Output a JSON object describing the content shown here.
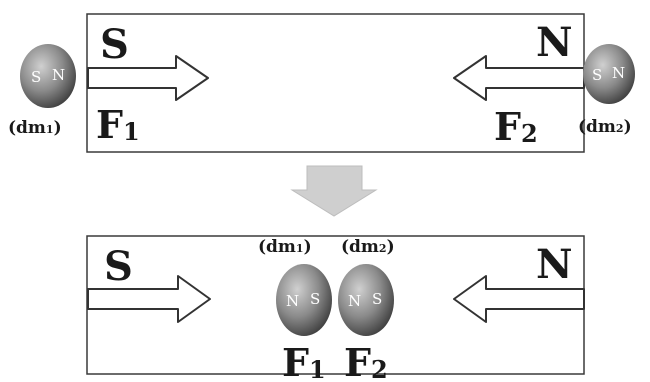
{
  "top_panel": {
    "left_pole": "S",
    "right_pole": "N",
    "force_left": {
      "main": "F",
      "sub": "1"
    },
    "force_right": {
      "main": "F",
      "sub": "2"
    },
    "dipole_left": {
      "south": "S",
      "north": "N",
      "label": "(dm",
      "label_sub": "1",
      "label_close": ")"
    },
    "dipole_right": {
      "south": "S",
      "north": "N",
      "label": "(dm",
      "label_sub": "2",
      "label_close": ")"
    }
  },
  "bottom_panel": {
    "left_pole": "S",
    "right_pole": "N",
    "force_left": {
      "main": "F",
      "sub": "1"
    },
    "force_right": {
      "main": "F",
      "sub": "2"
    },
    "dipole_left": {
      "north": "N",
      "south": "S",
      "label": "(dm",
      "label_sub": "1",
      "label_close": ")"
    },
    "dipole_right": {
      "north": "N",
      "south": "S",
      "label": "(dm",
      "label_sub": "2",
      "label_close": ")"
    }
  },
  "colors": {
    "frame": "#3a3a3a",
    "arrow_fill": "#ffffff",
    "arrow_stroke": "#333333",
    "transition_arrow": "#cccccc",
    "ball_light": "#c4c4c4",
    "ball_dark": "#4a4a4a"
  }
}
